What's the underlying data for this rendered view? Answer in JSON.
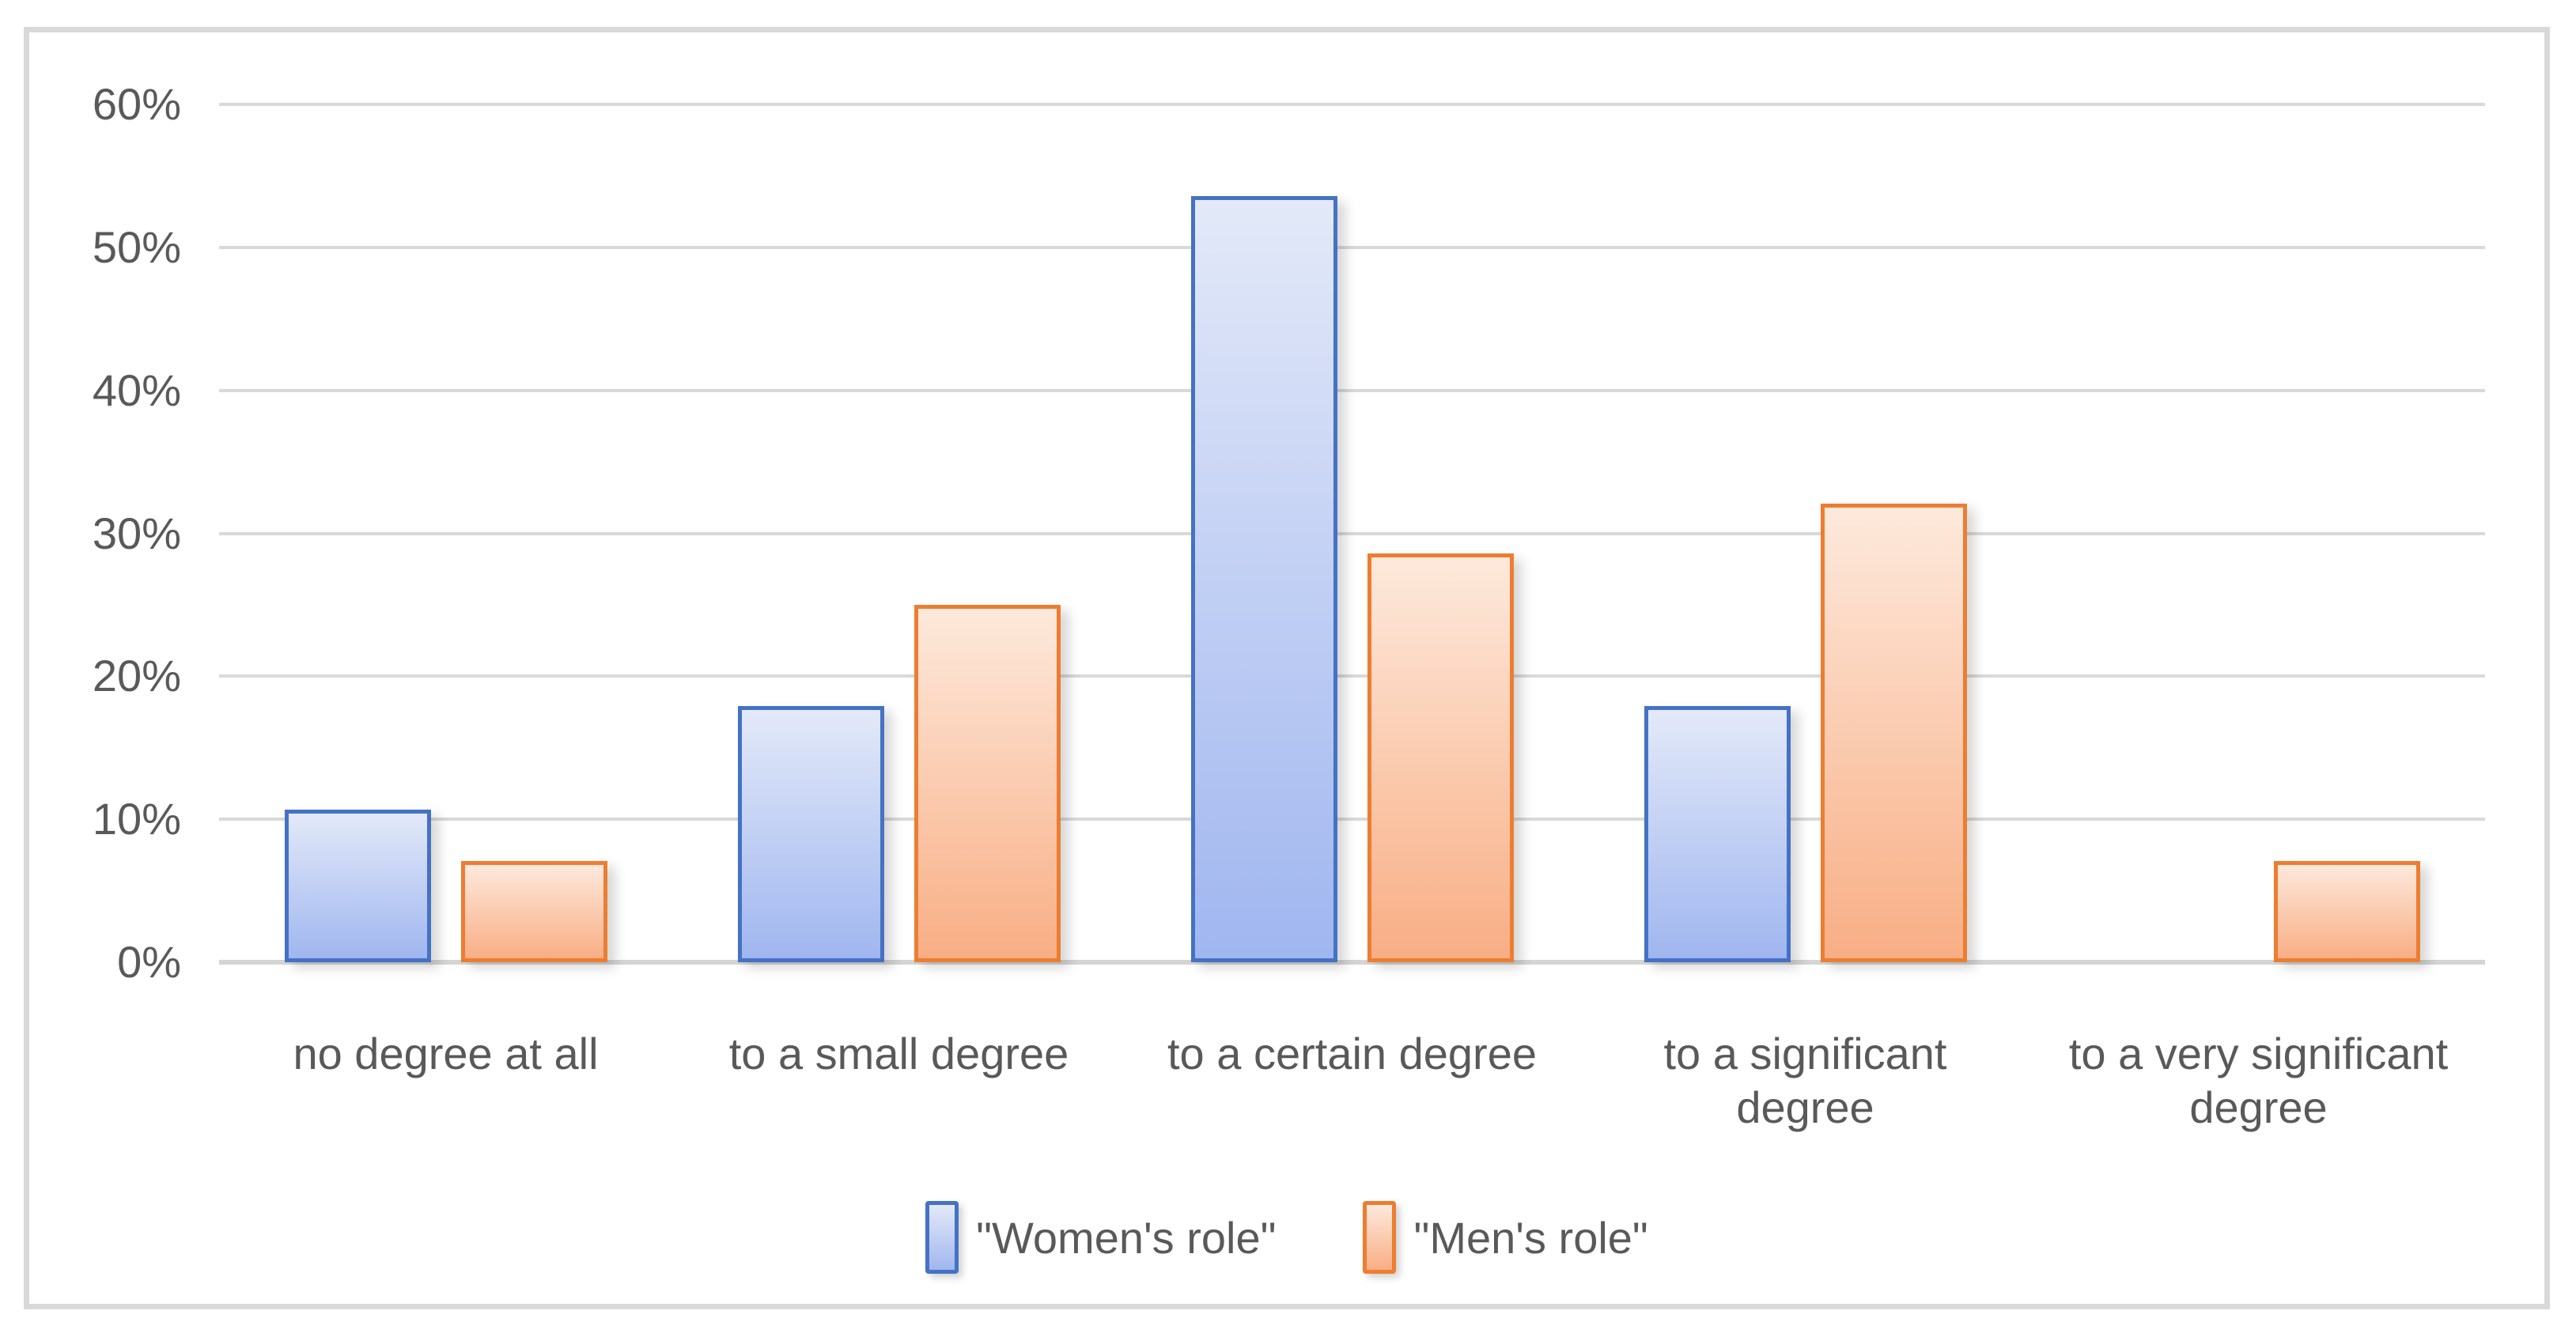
{
  "chart_data": {
    "type": "bar",
    "title": "",
    "xlabel": "",
    "ylabel": "",
    "categories": [
      "no degree at all",
      "to a small degree",
      "to a certain degree",
      "to a significant degree",
      "to a very significant degree"
    ],
    "series": [
      {
        "name": "\"Women's role\"",
        "values": [
          10.7,
          17.9,
          53.6,
          17.9,
          0
        ],
        "border_color": "#4472C4",
        "fill_top": "#E3E9F8",
        "fill_bottom": "#A0B6EF"
      },
      {
        "name": "\"Men's role\"",
        "values": [
          7.1,
          25.0,
          28.6,
          32.1,
          7.1
        ],
        "border_color": "#ED7D31",
        "fill_top": "#FDE9DC",
        "fill_bottom": "#F8AE85"
      }
    ],
    "ylim": [
      0,
      60
    ],
    "ytick_step": 10,
    "ytick_labels": [
      "0%",
      "10%",
      "20%",
      "30%",
      "40%",
      "50%",
      "60%"
    ],
    "grid": true,
    "legend_position": "bottom"
  },
  "colors": {
    "background": "#FFFFFF",
    "chart_border": "#D9D9D9",
    "gridline": "#D9D9D9",
    "axis_line": "#D4D4D4",
    "text": "#595959"
  }
}
